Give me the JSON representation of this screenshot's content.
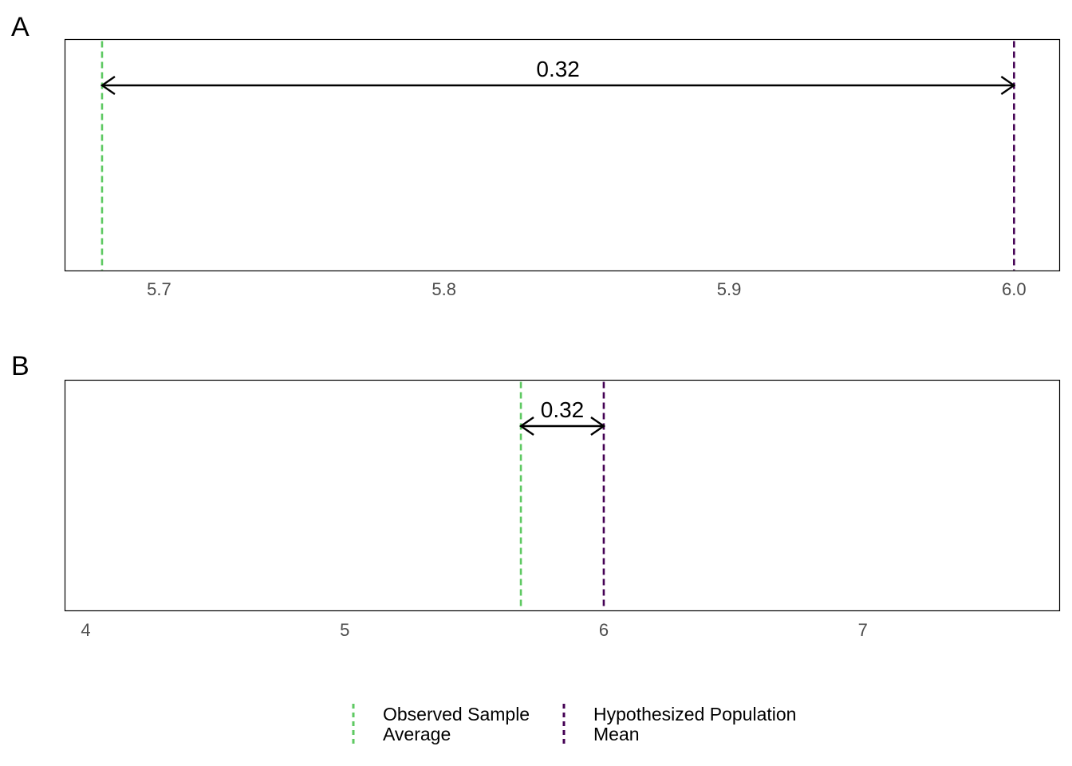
{
  "chart_data": [
    {
      "type": "line",
      "panel_label": "A",
      "xlim": [
        5.667,
        6.016
      ],
      "x_ticks": [
        "5.7",
        "5.8",
        "5.9",
        "6.0"
      ],
      "x_tick_values": [
        5.7,
        5.8,
        5.9,
        6.0
      ],
      "vlines": [
        {
          "series": "observed",
          "x": 5.68
        },
        {
          "series": "hypothesized",
          "x": 6.0
        }
      ],
      "difference": {
        "from": 5.68,
        "to": 6.0,
        "label": "0.32"
      },
      "grid": false
    },
    {
      "type": "line",
      "panel_label": "B",
      "xlim": [
        3.92,
        7.76
      ],
      "x_ticks": [
        "4",
        "5",
        "6",
        "7"
      ],
      "x_tick_values": [
        4,
        5,
        6,
        7
      ],
      "vlines": [
        {
          "series": "observed",
          "x": 5.68
        },
        {
          "series": "hypothesized",
          "x": 6.0
        }
      ],
      "difference": {
        "from": 5.68,
        "to": 6.0,
        "label": "0.32"
      },
      "grid": false
    }
  ],
  "legend": {
    "position": "bottom",
    "items": [
      {
        "key": "observed",
        "lines": [
          "Observed Sample",
          "Average"
        ],
        "color": "#5ec962"
      },
      {
        "key": "hypothesized",
        "lines": [
          "Hypothesized Population",
          "Mean"
        ],
        "color": "#440154"
      }
    ]
  }
}
